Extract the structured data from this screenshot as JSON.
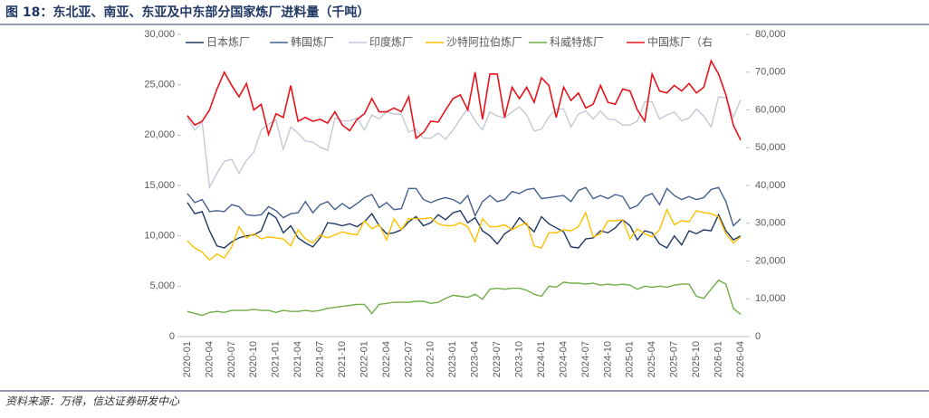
{
  "chart_data": {
    "type": "line",
    "title": "图 18：东北亚、南亚、东亚及中东部分国家炼厂进料量（千吨）",
    "source": "资料来源：万得，信达证券研发中心",
    "categories": [
      "2020-01",
      null,
      null,
      "2020-04",
      null,
      null,
      "2020-07",
      null,
      null,
      "2020-10",
      null,
      null,
      "2021-01",
      null,
      null,
      "2021-04",
      null,
      null,
      "2021-07",
      null,
      null,
      "2021-10",
      null,
      null,
      "2022-01",
      null,
      null,
      "2022-04",
      null,
      null,
      "2022-07",
      null,
      null,
      "2022-10",
      null,
      null,
      "2023-01",
      null,
      null,
      "2023-04",
      null,
      null,
      "2023-07",
      null,
      null,
      "2023-10",
      null,
      null,
      "2024-01",
      null,
      null,
      "2024-04",
      null,
      null,
      "2024-07",
      null,
      null,
      "2024-10",
      null,
      null,
      "2025-01",
      null,
      null,
      "2025-04",
      null,
      null,
      "2025-07",
      null,
      null,
      "2025-10",
      null,
      null,
      "2026-01",
      null,
      null,
      "2026-04"
    ],
    "ylim": [
      0,
      30000
    ],
    "yticks": [
      0,
      {
        "value": 5000,
        "label": "5,000"
      },
      {
        "value": 10000,
        "label": "10,000"
      },
      {
        "value": 15000,
        "label": "15,000"
      },
      {
        "value": 20000,
        "label": "20,000"
      },
      {
        "value": 25000,
        "label": "25,000"
      },
      {
        "value": 30000,
        "label": "30,000"
      }
    ],
    "y2lim": [
      0,
      80000
    ],
    "y2ticks": [
      0,
      {
        "value": 10000,
        "label": "10,000"
      },
      {
        "value": 20000,
        "label": "20,000"
      },
      {
        "value": 30000,
        "label": "30,000"
      },
      {
        "value": 40000,
        "label": "40,000"
      },
      {
        "value": 50000,
        "label": "50,000"
      },
      {
        "value": 60000,
        "label": "60,000"
      },
      {
        "value": 70000,
        "label": "70,000"
      },
      {
        "value": 80000,
        "label": "80,000"
      }
    ],
    "legend": "top",
    "series": [
      {
        "name": "日本炼厂",
        "color": "#1f3864",
        "values": [
          13300,
          12200,
          12400,
          10500,
          9000,
          8800,
          9400,
          9800,
          10000,
          10100,
          10500,
          12300,
          11800,
          10300,
          11000,
          9800,
          9300,
          8900,
          9800,
          11300,
          11200,
          11000,
          11200,
          10900,
          11400,
          12200,
          11000,
          10200,
          10300,
          10600,
          11400,
          11900,
          11000,
          11300,
          12100,
          11600,
          12300,
          12500,
          11300,
          11800,
          10500,
          10000,
          9200,
          10200,
          10700,
          11800,
          11100,
          10400,
          11900,
          11200,
          10800,
          10400,
          8900,
          8800,
          9700,
          9800,
          10500,
          10300,
          10800,
          11600,
          11000,
          9600,
          10500,
          10300,
          9200,
          8800,
          10000,
          9100,
          10500,
          10200,
          10600,
          10500,
          12100,
          10500,
          9600,
          10000
        ]
      },
      {
        "name": "韩国炼厂",
        "color": "#44608f",
        "values": [
          14200,
          13300,
          13600,
          12400,
          12500,
          12400,
          13100,
          12900,
          12100,
          12000,
          12100,
          12900,
          12500,
          11800,
          12200,
          12300,
          13400,
          12300,
          13100,
          13400,
          12600,
          13200,
          12700,
          13200,
          13800,
          14100,
          12800,
          13300,
          12600,
          12700,
          14700,
          14700,
          13600,
          13300,
          13600,
          13800,
          13600,
          13200,
          14000,
          12000,
          13400,
          14000,
          13400,
          13600,
          14400,
          14200,
          14600,
          14700,
          13700,
          13800,
          13900,
          14000,
          13400,
          14500,
          14800,
          13700,
          14000,
          13700,
          14100,
          13900,
          12700,
          13000,
          13900,
          14200,
          13100,
          14700,
          14000,
          13600,
          13900,
          13600,
          13800,
          14600,
          14800,
          13400,
          11000,
          11700
        ]
      },
      {
        "name": "印度炼厂",
        "color": "#c3c9d6",
        "values": [
          21700,
          20500,
          21300,
          14800,
          16200,
          17400,
          17600,
          16200,
          17500,
          18300,
          20500,
          21100,
          21500,
          18600,
          20800,
          20200,
          19400,
          19300,
          18800,
          18500,
          21700,
          21400,
          21400,
          21700,
          20500,
          22000,
          21600,
          22300,
          22100,
          22100,
          20300,
          20600,
          19700,
          19700,
          20200,
          19600,
          20500,
          21600,
          22700,
          21400,
          20500,
          22300,
          21900,
          21700,
          22300,
          22800,
          22000,
          20400,
          20600,
          21800,
          22600,
          22600,
          20800,
          22100,
          22400,
          21600,
          22400,
          21600,
          21500,
          21000,
          21000,
          21400,
          23300,
          23300,
          21600,
          22000,
          22300,
          21400,
          21700,
          22600,
          21900,
          20800,
          23800,
          23700,
          21800,
          23500
        ]
      },
      {
        "name": "沙特阿拉伯炼厂",
        "color": "#ffc000",
        "values": [
          9500,
          8800,
          8400,
          7600,
          8200,
          7800,
          8900,
          10900,
          9800,
          10200,
          9700,
          9900,
          9800,
          9700,
          9000,
          10600,
          9700,
          9300,
          10100,
          9800,
          10100,
          10400,
          10200,
          10100,
          11500,
          10700,
          11100,
          9600,
          11700,
          10600,
          11700,
          11700,
          11700,
          11800,
          11200,
          11000,
          11000,
          11300,
          10900,
          9400,
          11700,
          10900,
          10900,
          11100,
          10600,
          11000,
          11300,
          9000,
          8800,
          10300,
          10300,
          10600,
          10500,
          10900,
          12300,
          9900,
          10200,
          11500,
          11500,
          11600,
          9700,
          10700,
          10200,
          9900,
          10600,
          12600,
          11100,
          11500,
          11400,
          12500,
          12300,
          12200,
          11900,
          10200,
          9300,
          9900
        ]
      },
      {
        "name": "科威特炼厂",
        "color": "#70ad47",
        "values": [
          2500,
          2300,
          2100,
          2400,
          2500,
          2400,
          2600,
          2600,
          2600,
          2700,
          2600,
          2600,
          2400,
          2600,
          2500,
          2500,
          2600,
          2500,
          2600,
          2800,
          2900,
          3000,
          3100,
          3200,
          3200,
          2300,
          3200,
          3300,
          3400,
          3400,
          3400,
          3500,
          3500,
          3300,
          3400,
          3800,
          4100,
          4000,
          3900,
          4200,
          3700,
          4700,
          4800,
          4700,
          4800,
          4800,
          4600,
          4200,
          4000,
          5000,
          4900,
          5400,
          5300,
          5300,
          5200,
          5300,
          5100,
          5200,
          5100,
          5200,
          5100,
          4700,
          5000,
          4900,
          5000,
          4900,
          5100,
          5200,
          5200,
          4000,
          3800,
          4700,
          5600,
          5200,
          2800,
          2200
        ]
      },
      {
        "name": "中国炼厂（右",
        "color": "#e8141b",
        "axis": "y2",
        "values": [
          58500,
          56000,
          57000,
          60000,
          65500,
          70000,
          66500,
          63500,
          67000,
          60000,
          61500,
          53500,
          59000,
          58000,
          66500,
          57000,
          58000,
          57000,
          57500,
          56500,
          59500,
          56000,
          54500,
          57500,
          59000,
          63000,
          59500,
          59500,
          60500,
          59500,
          63500,
          52500,
          54000,
          57000,
          56800,
          60000,
          63000,
          64000,
          60000,
          70000,
          57500,
          69500,
          69500,
          58000,
          66000,
          63000,
          66000,
          62000,
          68500,
          66500,
          58000,
          66000,
          62500,
          64500,
          60500,
          61500,
          66500,
          62000,
          61500,
          65500,
          65000,
          60000,
          57000,
          69500,
          65000,
          64500,
          66500,
          65000,
          67000,
          64500,
          66000,
          73000,
          69500,
          64000,
          56000,
          52000
        ]
      }
    ]
  }
}
